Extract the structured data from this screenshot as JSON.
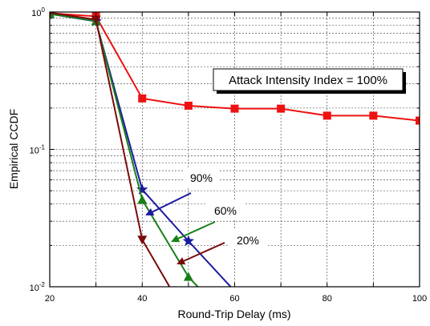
{
  "chart_data": {
    "type": "line",
    "xlabel": "Round-Trip Delay (ms)",
    "ylabel": "Empirical CCDF",
    "xlim": [
      20,
      100
    ],
    "ylim": [
      0.01,
      1
    ],
    "yscale": "log",
    "grid": true,
    "x_ticks": [
      "20",
      "40",
      "60",
      "80",
      "100"
    ],
    "y_ticks": [
      {
        "base": "10",
        "exp": "-2"
      },
      {
        "base": "10",
        "exp": "-1"
      },
      {
        "base": "10",
        "exp": "0"
      }
    ],
    "series": [
      {
        "name": "Attack Intensity Index = 100%",
        "color": "#ee1111",
        "marker": "square",
        "x": [
          20,
          30,
          40,
          50,
          60,
          70,
          80,
          90,
          100
        ],
        "y": [
          0.98,
          0.93,
          0.235,
          0.208,
          0.198,
          0.198,
          0.176,
          0.176,
          0.162
        ]
      },
      {
        "name": "90%",
        "color": "#1a1aa0",
        "marker": "star",
        "x": [
          20,
          30,
          40,
          50,
          60
        ],
        "y": [
          0.97,
          0.855,
          0.051,
          0.0215,
          0.0093
        ]
      },
      {
        "name": "60%",
        "color": "#178017",
        "marker": "triangle-up",
        "x": [
          20,
          30,
          40,
          50,
          60
        ],
        "y": [
          0.97,
          0.86,
          0.043,
          0.0118,
          0.0052
        ]
      },
      {
        "name": "20%",
        "color": "#7a0a0a",
        "marker": "triangle-down",
        "x": [
          20,
          30,
          40,
          50
        ],
        "y": [
          0.99,
          0.88,
          0.022,
          0.0058
        ]
      }
    ],
    "annotations": [
      {
        "text": "Attack Intensity Index = 100%",
        "series": 0
      },
      {
        "text": "90%",
        "series": 1
      },
      {
        "text": "60%",
        "series": 2
      },
      {
        "text": "20%",
        "series": 3
      }
    ]
  }
}
